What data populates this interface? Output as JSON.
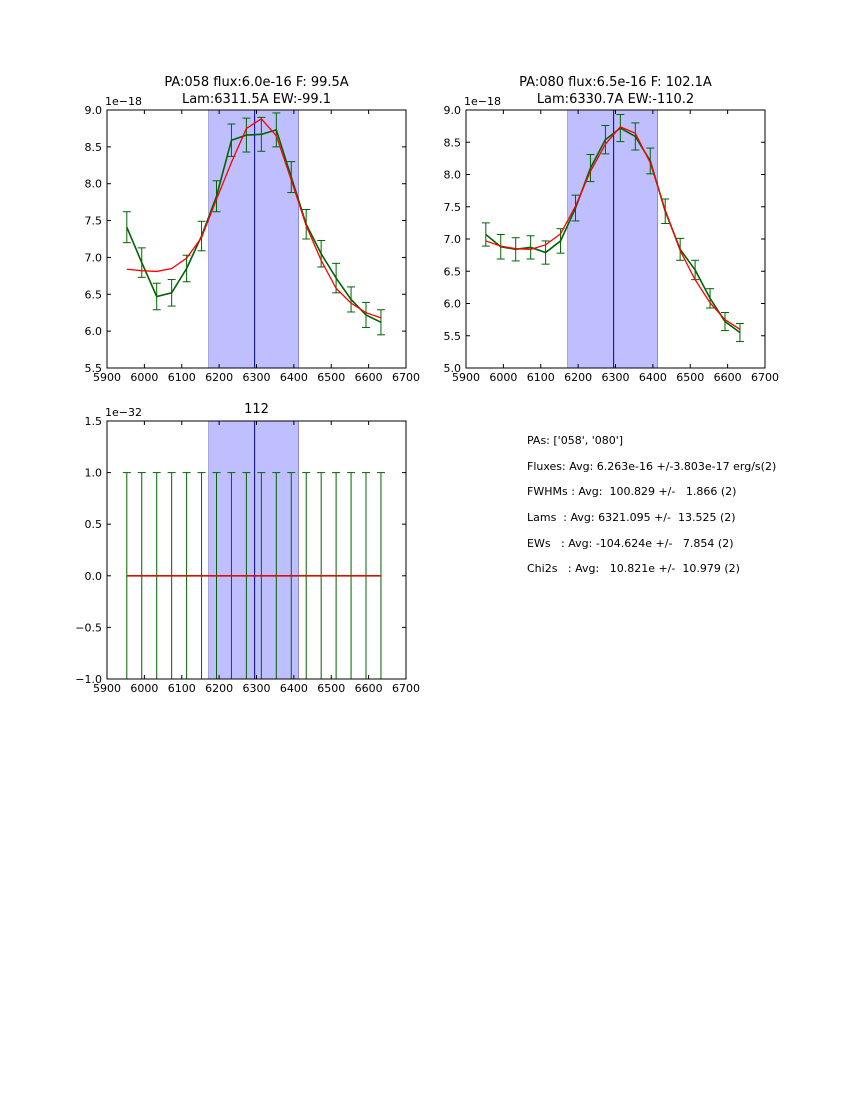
{
  "chart_data": [
    {
      "type": "line",
      "title": [
        "PA:058 flux:6.0e-16 F: 99.5A",
        "Lam:6311.5A EW:-99.1"
      ],
      "offset_label": "1e−18",
      "xlim": [
        5900,
        6700
      ],
      "ylim": [
        5.5,
        9.0
      ],
      "xticks": [
        "5900",
        "6000",
        "6100",
        "6200",
        "6300",
        "6400",
        "6500",
        "6600",
        "6700"
      ],
      "yticks": [
        "5.5",
        "6.0",
        "6.5",
        "7.0",
        "7.5",
        "8.0",
        "8.5",
        "9.0"
      ],
      "x": [
        5953,
        5993,
        6033,
        6073,
        6113,
        6153,
        6193,
        6233,
        6273,
        6313,
        6353,
        6393,
        6433,
        6473,
        6513,
        6553,
        6593,
        6633
      ],
      "series": [
        {
          "role": "data",
          "color": "#006400",
          "values": [
            7.41,
            6.93,
            6.47,
            6.52,
            6.85,
            7.29,
            7.83,
            8.59,
            8.66,
            8.67,
            8.73,
            8.09,
            7.45,
            7.05,
            6.72,
            6.43,
            6.22,
            6.12
          ],
          "errors": [
            0.21,
            0.2,
            0.18,
            0.18,
            0.18,
            0.2,
            0.21,
            0.22,
            0.23,
            0.23,
            0.23,
            0.21,
            0.2,
            0.18,
            0.2,
            0.17,
            0.17,
            0.17
          ]
        },
        {
          "role": "model",
          "color": "#ff0000",
          "values": [
            6.84,
            6.82,
            6.81,
            6.85,
            6.99,
            7.27,
            7.79,
            8.29,
            8.75,
            8.88,
            8.65,
            8.05,
            7.43,
            6.96,
            6.58,
            6.38,
            6.25,
            6.18
          ]
        }
      ],
      "band": [
        6172,
        6413
      ],
      "vline": 6295
    },
    {
      "type": "line",
      "title": [
        "PA:080 flux:6.5e-16 F: 102.1A",
        "Lam:6330.7A EW:-110.2"
      ],
      "offset_label": "1e−18",
      "xlim": [
        5900,
        6700
      ],
      "ylim": [
        5.0,
        9.0
      ],
      "xticks": [
        "5900",
        "6000",
        "6100",
        "6200",
        "6300",
        "6400",
        "6500",
        "6600",
        "6700"
      ],
      "yticks": [
        "5.0",
        "5.5",
        "6.0",
        "6.5",
        "7.0",
        "7.5",
        "8.0",
        "8.5",
        "9.0"
      ],
      "x": [
        5953,
        5993,
        6033,
        6073,
        6113,
        6153,
        6193,
        6233,
        6273,
        6313,
        6353,
        6393,
        6433,
        6473,
        6513,
        6553,
        6593,
        6633
      ],
      "series": [
        {
          "role": "data",
          "color": "#006400",
          "values": [
            7.07,
            6.88,
            6.84,
            6.87,
            6.79,
            6.97,
            7.48,
            8.1,
            8.54,
            8.72,
            8.59,
            8.21,
            7.43,
            6.84,
            6.52,
            6.08,
            5.72,
            5.55
          ],
          "errors": [
            0.18,
            0.19,
            0.18,
            0.18,
            0.18,
            0.19,
            0.2,
            0.21,
            0.22,
            0.21,
            0.21,
            0.2,
            0.19,
            0.17,
            0.15,
            0.15,
            0.14,
            0.14
          ]
        },
        {
          "role": "model",
          "color": "#ff0000",
          "values": [
            6.97,
            6.89,
            6.85,
            6.84,
            6.91,
            7.08,
            7.51,
            8.05,
            8.47,
            8.74,
            8.64,
            8.18,
            7.45,
            6.82,
            6.37,
            6.01,
            5.75,
            5.6
          ]
        }
      ],
      "band": [
        6172,
        6413
      ],
      "vline": 6295
    },
    {
      "type": "line",
      "title": [
        "112"
      ],
      "offset_label": "1e−32",
      "xlim": [
        5900,
        6700
      ],
      "ylim": [
        -1.0,
        1.5
      ],
      "xticks": [
        "5900",
        "6000",
        "6100",
        "6200",
        "6300",
        "6400",
        "6500",
        "6600",
        "6700"
      ],
      "yticks": [
        "−1.0",
        "−0.5",
        "0.0",
        "0.5",
        "1.0",
        "1.5"
      ],
      "x": [
        5953,
        5993,
        6033,
        6073,
        6113,
        6153,
        6193,
        6233,
        6273,
        6313,
        6353,
        6393,
        6433,
        6473,
        6513,
        6553,
        6593,
        6633
      ],
      "series": [
        {
          "role": "data",
          "color": "#006400",
          "values": [
            0,
            0,
            0,
            0,
            0,
            0,
            0,
            0,
            0,
            0,
            0,
            0,
            0,
            0,
            0,
            0,
            0,
            0
          ],
          "errors": [
            1,
            1,
            1,
            1,
            1,
            1,
            1,
            1,
            1,
            1,
            1,
            1,
            1,
            1,
            1,
            1,
            1,
            1
          ]
        },
        {
          "role": "model",
          "color": "#ff0000",
          "values": [
            0,
            0,
            0,
            0,
            0,
            0,
            0,
            0,
            0,
            0,
            0,
            0,
            0,
            0,
            0,
            0,
            0,
            0
          ]
        }
      ],
      "band": [
        6172,
        6413
      ],
      "vline": 6295
    }
  ],
  "stats": [
    "PAs: ['058', '080']",
    "Fluxes: Avg: 6.263e-16 +/-3.803e-17 erg/s(2)",
    "FWHMs : Avg:  100.829 +/-   1.866 (2)",
    "Lams  : Avg: 6321.095 +/-  13.525 (2)",
    "EWs   : Avg: -104.624e +/-   7.854 (2)",
    "Chi2s   : Avg:   10.821e +/-  10.979 (2)"
  ],
  "colors": {
    "band_fill": "#bfbfff",
    "band_edge": "#00008b",
    "vline": "#00008b",
    "data": "#006400",
    "model": "#ff0000"
  }
}
